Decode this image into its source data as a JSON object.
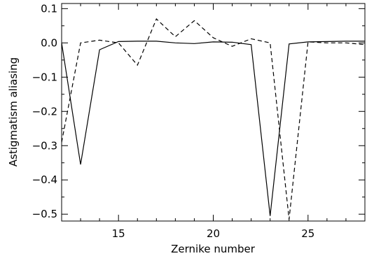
{
  "chart_data": {
    "type": "line",
    "title": "",
    "xlabel": "Zernike number",
    "ylabel": "Astigmatism aliasing",
    "xlim": [
      12,
      28
    ],
    "ylim": [
      -0.52,
      0.115
    ],
    "xticks": [
      15,
      20,
      25
    ],
    "xtick_labels": [
      "15",
      "20",
      "25"
    ],
    "yticks": [
      0.1,
      0.0,
      -0.1,
      -0.2,
      -0.3,
      -0.4,
      -0.5
    ],
    "ytick_labels": [
      "0.1",
      "0.0",
      "−0.1",
      "−0.2",
      "−0.3",
      "−0.4",
      "−0.5"
    ],
    "grid": false,
    "legend": "none",
    "series": [
      {
        "style": "solid",
        "color": "#000000",
        "x": [
          12,
          13,
          14,
          15,
          16,
          17,
          18,
          19,
          20,
          21,
          22,
          23,
          24,
          25,
          26,
          27,
          28
        ],
        "y": [
          0.0,
          -0.355,
          -0.02,
          0.004,
          0.005,
          0.005,
          0.0,
          -0.002,
          0.003,
          0.002,
          -0.005,
          -0.505,
          -0.003,
          0.003,
          0.004,
          0.005,
          0.005
        ]
      },
      {
        "style": "dashed",
        "color": "#000000",
        "x": [
          12,
          13,
          14,
          15,
          16,
          17,
          18,
          19,
          20,
          21,
          22,
          23,
          24,
          25,
          26,
          27,
          28
        ],
        "y": [
          -0.29,
          0.0,
          0.008,
          0.0,
          -0.065,
          0.07,
          0.018,
          0.065,
          0.015,
          -0.01,
          0.012,
          0.0,
          -0.515,
          0.003,
          0.0,
          0.0,
          -0.005
        ]
      }
    ]
  }
}
